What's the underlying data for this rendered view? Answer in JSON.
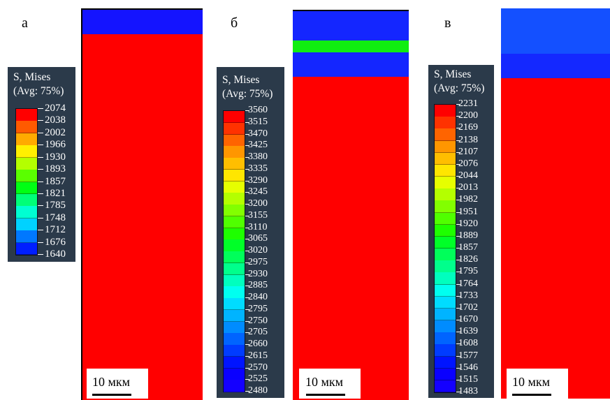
{
  "panels": [
    {
      "letter": "а",
      "legend": {
        "title1": "S, Mises",
        "title2": "(Avg: 75%)",
        "values": [
          "2074",
          "2038",
          "2002",
          "1966",
          "1930",
          "1893",
          "1857",
          "1821",
          "1785",
          "1748",
          "1712",
          "1676",
          "1640"
        ],
        "colors": [
          "#ff0000",
          "#ff5a00",
          "#ffaa00",
          "#fff000",
          "#b4ff00",
          "#5aff00",
          "#00ff14",
          "#00ff78",
          "#00ffd2",
          "#00d2ff",
          "#0078ff",
          "#001eff"
        ]
      },
      "bands": [
        {
          "color": "#1414ff",
          "fraction": 0.062
        },
        {
          "color": "#ff0000",
          "fraction": 0.938
        }
      ],
      "scale_label": "10 мкм"
    },
    {
      "letter": "б",
      "legend": {
        "title1": "S, Mises",
        "title2": "(Avg: 75%)",
        "values": [
          "3560",
          "3515",
          "3470",
          "3425",
          "3380",
          "3335",
          "3290",
          "3245",
          "3200",
          "3155",
          "3110",
          "3065",
          "3020",
          "2975",
          "2930",
          "2885",
          "2840",
          "2795",
          "2750",
          "2705",
          "2660",
          "2615",
          "2570",
          "2525",
          "2480"
        ],
        "colors": [
          "#ff0000",
          "#ff3200",
          "#ff6400",
          "#ff9600",
          "#ffbe00",
          "#ffe600",
          "#e6ff00",
          "#b4ff00",
          "#82ff00",
          "#50ff00",
          "#1eff00",
          "#00ff28",
          "#00ff5a",
          "#00ff8c",
          "#00ffbe",
          "#00fff0",
          "#00dcff",
          "#00b4ff",
          "#008cff",
          "#0064ff",
          "#003cff",
          "#0014ff",
          "#0a00ff",
          "#1400ff"
        ]
      },
      "bands": [
        {
          "color": "#1426ff",
          "fraction": 0.075
        },
        {
          "color": "#10ee10",
          "fraction": 0.031
        },
        {
          "color": "#1426ff",
          "fraction": 0.062
        },
        {
          "color": "#ff0000",
          "fraction": 0.832
        }
      ],
      "scale_label": "10 мкм"
    },
    {
      "letter": "в",
      "legend": {
        "title1": "S, Mises",
        "title2": "(Avg: 75%)",
        "values": [
          "2231",
          "2200",
          "2169",
          "2138",
          "2107",
          "2076",
          "2044",
          "2013",
          "1982",
          "1951",
          "1920",
          "1889",
          "1857",
          "1826",
          "1795",
          "1764",
          "1733",
          "1702",
          "1670",
          "1639",
          "1608",
          "1577",
          "1546",
          "1515",
          "1483"
        ],
        "colors": [
          "#ff0000",
          "#ff3200",
          "#ff6400",
          "#ff9600",
          "#ffbe00",
          "#ffe600",
          "#e6ff00",
          "#b4ff00",
          "#82ff00",
          "#50ff00",
          "#1eff00",
          "#00ff28",
          "#00ff5a",
          "#00ff8c",
          "#00ffbe",
          "#00fff0",
          "#00dcff",
          "#00b4ff",
          "#008cff",
          "#0064ff",
          "#003cff",
          "#0014ff",
          "#0a00ff",
          "#1400ff"
        ]
      },
      "bands": [
        {
          "color": "#1450ff",
          "fraction": 0.117
        },
        {
          "color": "#1428ff",
          "fraction": 0.062
        },
        {
          "color": "#ff0000",
          "fraction": 0.821
        }
      ],
      "scale_label": "10 мкм"
    }
  ]
}
